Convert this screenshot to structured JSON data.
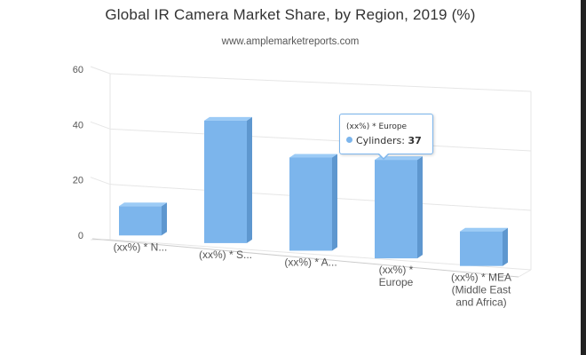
{
  "chart_data": {
    "type": "bar",
    "title": "Global IR Camera Market Share, by Region, 2019 (%)",
    "subtitle": "www.amplemarketreports.com",
    "categories": [
      "(xx%) * N...",
      "(xx%) * S...",
      "(xx%) * A...",
      "(xx%) * Europe",
      "(xx%) * MEA (Middle East and Africa)"
    ],
    "series": [
      {
        "name": "Cylinders",
        "values": [
          11,
          46,
          35,
          37,
          13
        ]
      }
    ],
    "ylim": [
      0,
      60
    ],
    "yticks": [
      0,
      20,
      40,
      60
    ],
    "grid": true,
    "legend": "none",
    "style": "3d-column",
    "colors": {
      "bar_front": "#7cb5ec",
      "bar_side": "#5e97cf",
      "bar_top": "#9ccbf6",
      "grid": "#e6e6e6"
    },
    "tooltip": {
      "header": "(xx%) * Europe",
      "series_name": "Cylinders",
      "value": "37"
    }
  }
}
